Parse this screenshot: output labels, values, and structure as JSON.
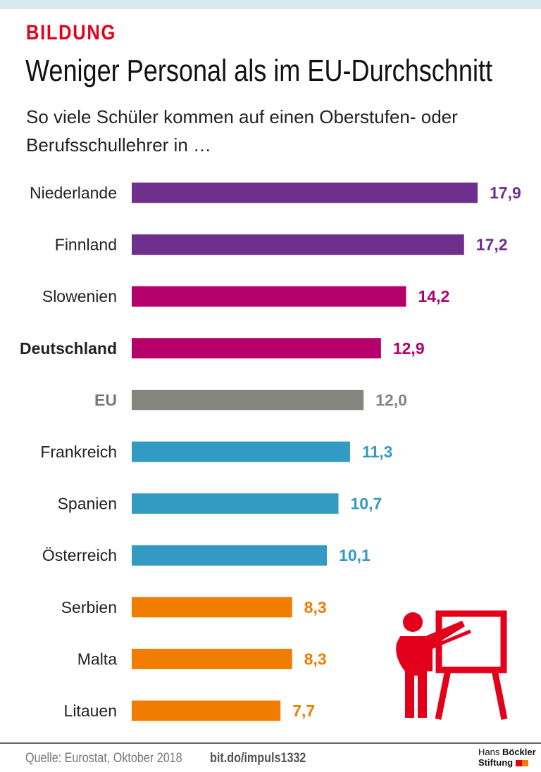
{
  "header": {
    "kicker": "BILDUNG",
    "title": "Weniger Personal als im EU-Durchschnitt",
    "subtitle": "So viele Schüler kommen auf einen Oberstufen- oder Berufsschullehrer in …"
  },
  "footer": {
    "source": "Quelle: Eurostat, Oktober 2018",
    "link": "bit.do/impuls1332",
    "logo_line1_a": "Hans",
    "logo_line1_b": "Böckler",
    "logo_line2": "Stiftung"
  },
  "colors": {
    "purple": "#6f2f8c",
    "magenta": "#b5006b",
    "gray": "#85847e",
    "blue": "#339ac4",
    "orange": "#f07d00",
    "accent": "#e2001a"
  },
  "chart_data": {
    "type": "bar",
    "orientation": "horizontal",
    "title": "Weniger Personal als im EU-Durchschnitt",
    "xlabel": "",
    "ylabel": "",
    "xlim": [
      0,
      17.9
    ],
    "categories": [
      "Niederlande",
      "Finnland",
      "Slowenien",
      "Deutschland",
      "EU",
      "Frankreich",
      "Spanien",
      "Österreich",
      "Serbien",
      "Malta",
      "Litauen"
    ],
    "values": [
      17.9,
      17.2,
      14.2,
      12.9,
      12.0,
      11.3,
      10.7,
      10.1,
      8.3,
      8.3,
      7.7
    ],
    "labels": [
      "17,9",
      "17,2",
      "14,2",
      "12,9",
      "12,0",
      "11,3",
      "10,7",
      "10,1",
      "8,3",
      "8,3",
      "7,7"
    ],
    "groups": [
      "purple",
      "purple",
      "magenta",
      "magenta",
      "gray",
      "blue",
      "blue",
      "blue",
      "orange",
      "orange",
      "orange"
    ],
    "bold": [
      "Deutschland",
      "EU"
    ]
  }
}
